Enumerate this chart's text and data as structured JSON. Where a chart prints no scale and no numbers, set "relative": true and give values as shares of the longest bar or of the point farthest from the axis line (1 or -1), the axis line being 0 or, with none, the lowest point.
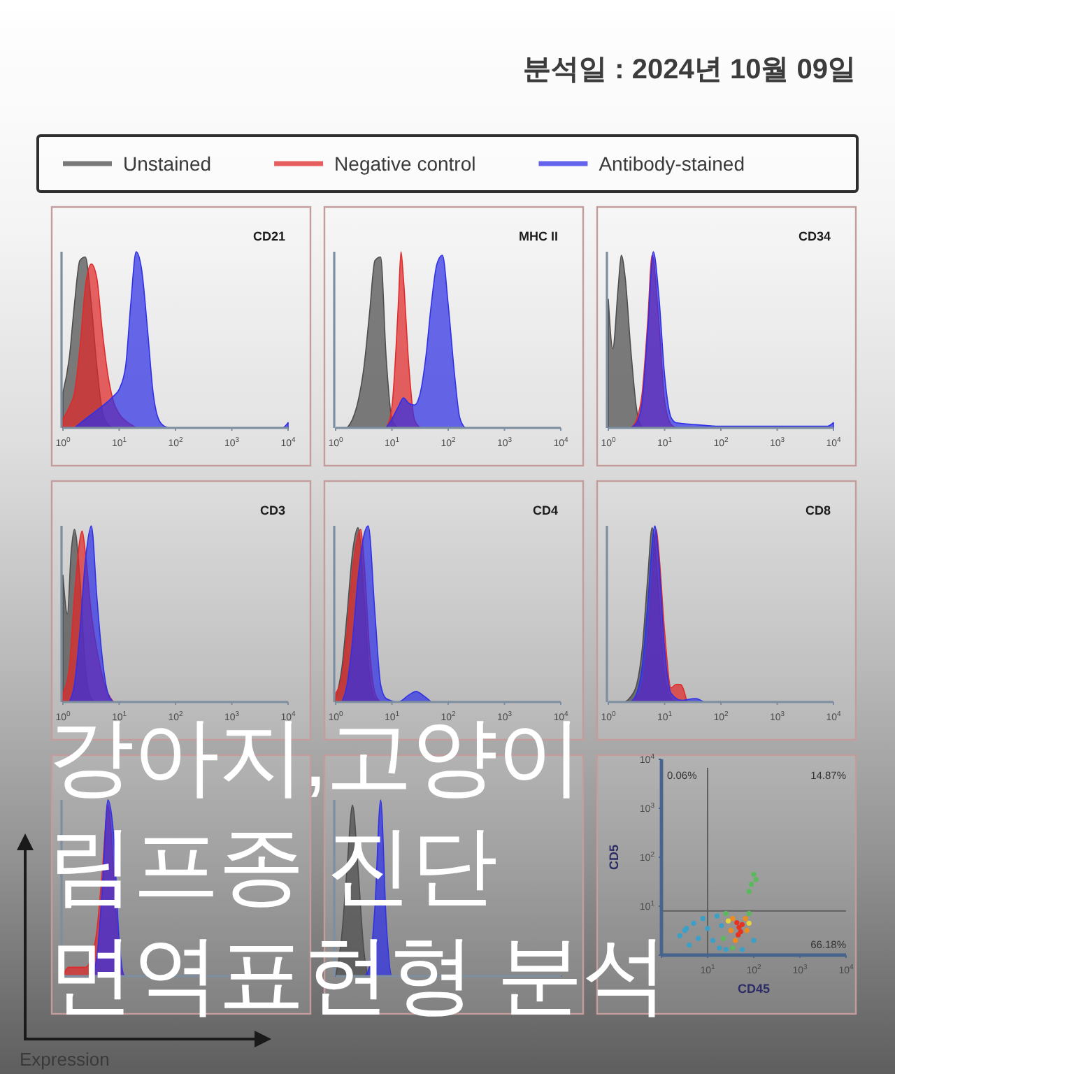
{
  "chart_data": [
    {
      "type": "other",
      "title": "강아지,고양이 림프종 진단 면역표현형 분석",
      "subtitle": "분석일 : 2024년 10월 09일",
      "annotations": [
        "Expression"
      ]
    },
    {
      "type": "area",
      "title": "CD21",
      "log": "x",
      "relative": true,
      "legend": "top",
      "xlim": [
        1,
        10000
      ],
      "xticks": [
        {
          "value": 1,
          "label": "10$^{0}$"
        },
        {
          "value": 10,
          "label": "10$^{1}$"
        },
        {
          "value": 100,
          "label": "10$^{2}$"
        },
        {
          "value": 1000,
          "label": "10$^{3}$"
        },
        {
          "value": 10000,
          "label": "10$^{4}$"
        }
      ],
      "series": [
        {
          "name": "Unstained",
          "color": "#4d4d4d",
          "x": [
            1,
            1.3,
            1.6,
            2,
            2.5,
            3.2,
            4,
            5,
            6.3,
            7.9
          ],
          "values": [
            0.2,
            0.4,
            0.7,
            0.95,
            0.97,
            0.7,
            0.35,
            0.1,
            0.02,
            0
          ]
        },
        {
          "name": "Negative control",
          "color": "#e02a2a",
          "x": [
            1,
            1.3,
            1.6,
            2,
            2.5,
            3.2,
            4,
            5,
            6.3,
            7.9,
            10,
            13,
            16,
            20
          ],
          "values": [
            0.05,
            0.12,
            0.2,
            0.45,
            0.8,
            0.93,
            0.85,
            0.55,
            0.3,
            0.15,
            0.08,
            0.04,
            0.02,
            0
          ]
        },
        {
          "name": "Antibody-stained",
          "color": "#3030e6",
          "x": [
            1.6,
            2.5,
            4,
            6.3,
            7.9,
            10,
            13,
            16,
            20,
            25,
            32,
            40,
            50,
            63,
            79,
            7900,
            10000
          ],
          "values": [
            0,
            0.05,
            0.1,
            0.15,
            0.18,
            0.22,
            0.35,
            0.7,
            1,
            0.9,
            0.55,
            0.2,
            0.05,
            0.01,
            0,
            0,
            0.03
          ]
        }
      ]
    },
    {
      "type": "area",
      "title": "MHC II",
      "log": "x",
      "relative": true,
      "xlim": [
        1,
        10000
      ],
      "xticks": [
        {
          "value": 1,
          "label": "10$^{0}$"
        },
        {
          "value": 10,
          "label": "10$^{1}$"
        },
        {
          "value": 100,
          "label": "10$^{2}$"
        },
        {
          "value": 1000,
          "label": "10$^{3}$"
        },
        {
          "value": 10000,
          "label": "10$^{4}$"
        }
      ],
      "series": [
        {
          "color": "#4d4d4d",
          "x": [
            1.6,
            2,
            2.5,
            3.2,
            4,
            5,
            6.3,
            7.9,
            10,
            13
          ],
          "values": [
            0,
            0.05,
            0.15,
            0.35,
            0.65,
            0.95,
            0.97,
            0.4,
            0.05,
            0
          ]
        },
        {
          "color": "#e02a2a",
          "x": [
            7.9,
            10,
            13,
            14.5,
            16,
            20,
            25,
            32
          ],
          "values": [
            0,
            0.12,
            0.7,
            1,
            0.85,
            0.35,
            0.05,
            0
          ]
        },
        {
          "color": "#3030e6",
          "x": [
            7.9,
            10,
            13,
            16,
            20,
            25,
            32,
            40,
            50,
            63,
            79,
            100,
            130,
            160,
            200
          ],
          "values": [
            0,
            0.05,
            0.12,
            0.17,
            0.14,
            0.13,
            0.2,
            0.4,
            0.7,
            0.93,
            0.98,
            0.7,
            0.3,
            0.06,
            0
          ]
        }
      ]
    },
    {
      "type": "area",
      "title": "CD34",
      "log": "x",
      "relative": true,
      "xlim": [
        1,
        10000
      ],
      "xticks": [
        {
          "value": 1,
          "label": "10$^{0}$"
        },
        {
          "value": 10,
          "label": "10$^{1}$"
        },
        {
          "value": 100,
          "label": "10$^{2}$"
        },
        {
          "value": 1000,
          "label": "10$^{3}$"
        },
        {
          "value": 10000,
          "label": "10$^{4}$"
        }
      ],
      "series": [
        {
          "color": "#4d4d4d",
          "x": [
            1,
            1.2,
            1.5,
            1.7,
            2,
            2.5,
            3.2,
            4
          ],
          "values": [
            0.73,
            0.45,
            0.8,
            0.98,
            0.85,
            0.45,
            0.1,
            0
          ]
        },
        {
          "color": "#e02a2a",
          "x": [
            2.5,
            3.2,
            4,
            5,
            6,
            7.9,
            10,
            13,
            16
          ],
          "values": [
            0,
            0.05,
            0.2,
            0.6,
            0.98,
            0.6,
            0.15,
            0.02,
            0
          ]
        },
        {
          "color": "#3030e6",
          "x": [
            2.5,
            3.2,
            4,
            5,
            6.3,
            7.9,
            10,
            13,
            16,
            32,
            100,
            1000,
            7900,
            10000
          ],
          "values": [
            0,
            0.03,
            0.15,
            0.55,
            1,
            0.75,
            0.3,
            0.06,
            0.03,
            0.02,
            0.01,
            0.01,
            0.01,
            0.03
          ]
        }
      ]
    },
    {
      "type": "area",
      "title": "CD3",
      "log": "x",
      "relative": true,
      "xlim": [
        1,
        10000
      ],
      "xticks": [
        {
          "value": 1,
          "label": "10$^{0}$"
        },
        {
          "value": 10,
          "label": "10$^{1}$"
        },
        {
          "value": 100,
          "label": "10$^{2}$"
        },
        {
          "value": 1000,
          "label": "10$^{3}$"
        },
        {
          "value": 10000,
          "label": "10$^{4}$"
        }
      ],
      "series": [
        {
          "color": "#4d4d4d",
          "x": [
            1,
            1.2,
            1.4,
            1.6,
            2,
            2.5,
            3.2,
            4
          ],
          "values": [
            0.72,
            0.5,
            0.85,
            0.98,
            0.7,
            0.2,
            0.02,
            0
          ]
        },
        {
          "color": "#e02a2a",
          "x": [
            1,
            1.3,
            1.6,
            2.2,
            2.5,
            3.2,
            4,
            5,
            6.3,
            7.9
          ],
          "values": [
            0.05,
            0.2,
            0.6,
            0.97,
            0.85,
            0.5,
            0.3,
            0.15,
            0.05,
            0
          ]
        },
        {
          "color": "#3030e6",
          "x": [
            1.3,
            1.6,
            2,
            2.5,
            3.2,
            4,
            5,
            6.3,
            7.9
          ],
          "values": [
            0,
            0.1,
            0.4,
            0.8,
            1,
            0.6,
            0.25,
            0.05,
            0
          ]
        }
      ]
    },
    {
      "type": "area",
      "title": "CD4",
      "log": "x",
      "relative": true,
      "xlim": [
        1,
        10000
      ],
      "xticks": [
        {
          "value": 1,
          "label": "10$^{0}$"
        },
        {
          "value": 10,
          "label": "10$^{1}$"
        },
        {
          "value": 100,
          "label": "10$^{2}$"
        },
        {
          "value": 1000,
          "label": "10$^{3}$"
        },
        {
          "value": 10000,
          "label": "10$^{4}$"
        }
      ],
      "series": [
        {
          "color": "#4d4d4d",
          "x": [
            1,
            1.3,
            1.6,
            2,
            2.5,
            3.2,
            4,
            5,
            6.3
          ],
          "values": [
            0.02,
            0.2,
            0.5,
            0.85,
            0.99,
            0.6,
            0.15,
            0.02,
            0
          ]
        },
        {
          "color": "#e02a2a",
          "x": [
            1,
            1.3,
            1.6,
            2,
            2.8,
            3.2,
            4,
            5,
            6.3
          ],
          "values": [
            0.05,
            0.15,
            0.4,
            0.75,
            0.98,
            0.8,
            0.3,
            0.05,
            0
          ]
        },
        {
          "color": "#3030e6",
          "x": [
            1.3,
            1.6,
            2,
            2.5,
            3.2,
            3.8,
            5,
            6.3,
            7.9,
            13,
            20,
            27,
            35,
            50
          ],
          "values": [
            0,
            0.1,
            0.35,
            0.7,
            0.95,
            1,
            0.5,
            0.1,
            0.02,
            0,
            0.04,
            0.06,
            0.04,
            0
          ]
        }
      ]
    },
    {
      "type": "area",
      "title": "CD8",
      "log": "x",
      "relative": true,
      "xlim": [
        1,
        10000
      ],
      "xticks": [
        {
          "value": 1,
          "label": "10$^{0}$"
        },
        {
          "value": 10,
          "label": "10$^{1}$"
        },
        {
          "value": 100,
          "label": "10$^{2}$"
        },
        {
          "value": 1000,
          "label": "10$^{3}$"
        },
        {
          "value": 10000,
          "label": "10$^{4}$"
        }
      ],
      "series": [
        {
          "color": "#4d4d4d",
          "x": [
            2,
            2.5,
            3.2,
            4,
            5,
            6,
            7.9,
            10,
            13,
            16
          ],
          "values": [
            0,
            0.03,
            0.1,
            0.3,
            0.7,
            0.99,
            0.6,
            0.15,
            0.02,
            0
          ]
        },
        {
          "color": "#e02a2a",
          "x": [
            2.5,
            3.2,
            4,
            5,
            6.3,
            7.1,
            7.9,
            10,
            13,
            16,
            19,
            25
          ],
          "values": [
            0,
            0.03,
            0.1,
            0.35,
            0.8,
            0.98,
            0.85,
            0.4,
            0.08,
            0.1,
            0.1,
            0
          ]
        },
        {
          "color": "#3030e6",
          "x": [
            2.5,
            3.2,
            4,
            5,
            6.7,
            7.9,
            10,
            13,
            20,
            35,
            50
          ],
          "values": [
            0,
            0.05,
            0.2,
            0.55,
            1,
            0.8,
            0.3,
            0.05,
            0.01,
            0.02,
            0
          ]
        }
      ]
    },
    {
      "type": "area",
      "relative": true,
      "categories": [
        null,
        null,
        null,
        null,
        null,
        null,
        null,
        null,
        null,
        null,
        null,
        null,
        null,
        null,
        null,
        null,
        null,
        null,
        null,
        null,
        null,
        null,
        null,
        null,
        null,
        null,
        null,
        null,
        null,
        null,
        null,
        null,
        null,
        null,
        null,
        null,
        null,
        null,
        null,
        null,
        null
      ],
      "series": [
        {
          "color": "#e02a2a",
          "values": [
            0,
            0.05,
            0.05,
            0.05,
            0.05,
            0.1,
            0.25,
            0.6,
            0.97,
            0.6,
            0.1,
            0,
            0,
            0,
            0,
            0,
            0,
            0,
            0,
            0,
            0,
            0,
            0,
            0,
            0,
            0,
            0,
            0,
            0,
            0,
            0,
            0,
            0,
            0,
            0,
            0,
            0,
            0,
            0,
            0,
            0
          ]
        },
        {
          "color": "#3030e6",
          "values": [
            0,
            0,
            0,
            0,
            0,
            0,
            0.1,
            0.5,
            1,
            0.8,
            0.2,
            0,
            0,
            0,
            0,
            0,
            0,
            0,
            0,
            0,
            0,
            0,
            0,
            0,
            0,
            0,
            0,
            0,
            0,
            0,
            0,
            0,
            0,
            0,
            0,
            0,
            0,
            0,
            0,
            0,
            0
          ]
        }
      ]
    },
    {
      "type": "area",
      "relative": true,
      "categories": [
        null,
        null,
        null,
        null,
        null,
        null,
        null,
        null,
        null,
        null,
        null,
        null,
        null,
        null,
        null,
        null,
        null,
        null,
        null,
        null,
        null,
        null,
        null,
        null,
        null,
        null,
        null,
        null,
        null,
        null,
        null,
        null,
        null,
        null,
        null,
        null,
        null,
        null,
        null,
        null,
        null
      ],
      "series": [
        {
          "color": "#4d4d4d",
          "values": [
            0,
            0.2,
            0.6,
            0.97,
            0.6,
            0.15,
            0,
            0,
            0,
            0,
            0,
            0,
            0,
            0,
            0,
            0,
            0,
            0,
            0,
            0,
            0,
            0,
            0,
            0,
            0,
            0,
            0,
            0,
            0,
            0,
            0,
            0,
            0,
            0,
            0,
            0,
            0,
            0,
            0,
            0,
            0
          ]
        },
        {
          "color": "#3030e6",
          "values": [
            0,
            0,
            0,
            0,
            0,
            0,
            0.05,
            0.4,
            1,
            0.3,
            0,
            0,
            0,
            0,
            0,
            0,
            0,
            0,
            0,
            0,
            0,
            0,
            0,
            0,
            0,
            0,
            0,
            0,
            0,
            0,
            0,
            0,
            0,
            0,
            0,
            0,
            0,
            0,
            0,
            0,
            0
          ]
        }
      ]
    },
    {
      "type": "scatter",
      "log": "xy",
      "xlabel": "CD45",
      "ylabel": "CD5",
      "marker": "circle",
      "xlim": [
        1,
        10000
      ],
      "ylim": [
        1,
        10000
      ],
      "xticks": [
        {
          "value": 1,
          "label": null
        },
        {
          "value": 10,
          "label": "10$^{1}$"
        },
        {
          "value": 100,
          "label": "10$^{2}$"
        },
        {
          "value": 1000,
          "label": "10$^{3}$"
        },
        {
          "value": 10000,
          "label": "10$^{4}$"
        }
      ],
      "yticks": [
        {
          "value": 1,
          "label": null
        },
        {
          "value": 10,
          "label": "10$^{1}$"
        },
        {
          "value": 100,
          "label": "10$^{2}$"
        },
        {
          "value": 1000,
          "label": "10$^{3}$"
        },
        {
          "value": 10000,
          "label": "10$^{4}$"
        }
      ],
      "x": [
        48,
        52,
        43,
        56,
        46,
        35,
        66,
        32,
        71,
        40,
        28,
        79,
        25,
        79,
        22,
        35,
        89,
        100,
        79,
        112,
        3.2,
        5,
        6.3,
        10,
        13,
        4,
        18,
        2.5,
        16,
        25,
        56,
        100,
        7.9,
        20,
        3.5
      ],
      "values": [
        3.7,
        3,
        4.6,
        4.2,
        2.6,
        5.6,
        5.6,
        3.2,
        3.2,
        2,
        5,
        4.5,
        7.1,
        7.1,
        2.2,
        1.4,
        28,
        45,
        20,
        35,
        3.2,
        4.5,
        2.2,
        3.5,
        2,
        1.6,
        1.4,
        2.5,
        6.3,
        1.3,
        1.3,
        2,
        5.6,
        4,
        3.5
      ],
      "colors": [
        "#e8321e",
        "#e8321e",
        "#e8321e",
        "#e8321e",
        "#e8321e",
        "#f08c1e",
        "#f08c1e",
        "#f08c1e",
        "#f08c1e",
        "#f08c1e",
        "#e6d23c",
        "#e6d23c",
        "#5cb85c",
        "#5cb85c",
        "#5cb85c",
        "#5cb85c",
        "#5cb85c",
        "#5cb85c",
        "#5cb85c",
        "#5cb85c",
        "#3aa0c8",
        "#3aa0c8",
        "#3aa0c8",
        "#3aa0c8",
        "#3aa0c8",
        "#3aa0c8",
        "#3aa0c8",
        "#3aa0c8",
        "#3aa0c8",
        "#3aa0c8",
        "#3aa0c8",
        "#3aa0c8",
        "#3aa0c8",
        "#3aa0c8",
        "#3aa0c8"
      ],
      "ref_lines": [
        {
          "axis": "x",
          "value": 10
        },
        {
          "axis": "y",
          "value": 8
        }
      ],
      "annotations": [
        "0.06%",
        "14.87%",
        "66.18%"
      ]
    }
  ]
}
